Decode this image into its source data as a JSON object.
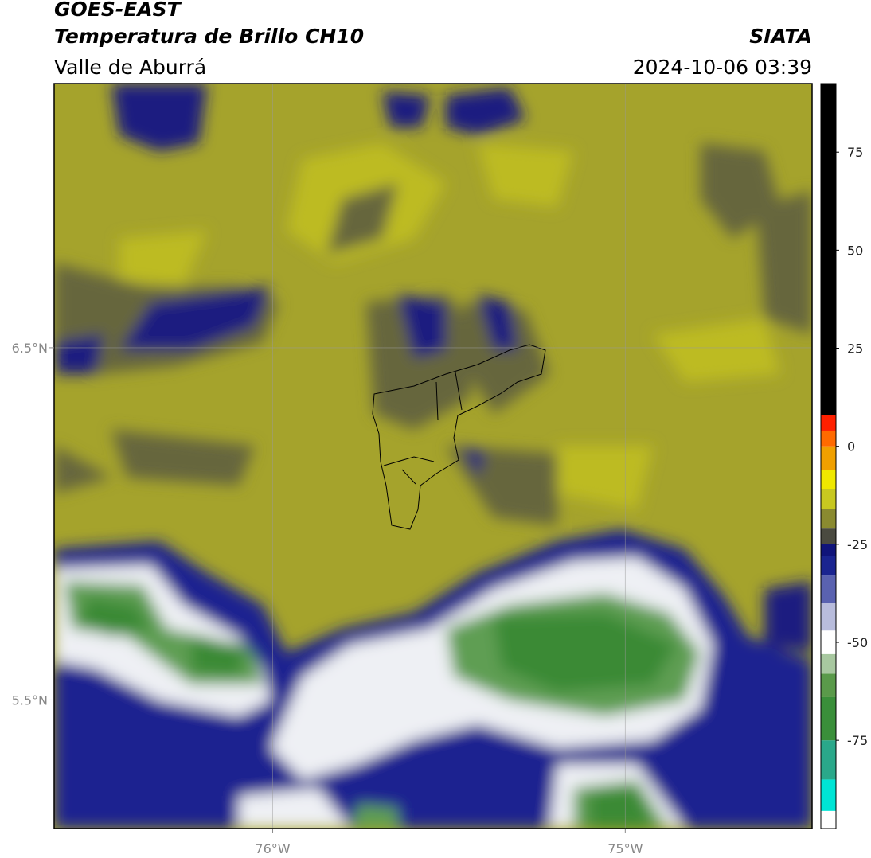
{
  "header": {
    "title": "GOES-EAST",
    "subtitle": "Temperatura de Brillo CH10",
    "region": "Valle de Aburrá",
    "source": "SIATA",
    "datetime": "2024-10-06 03:39"
  },
  "map": {
    "xlim": [
      -76.62,
      -74.47
    ],
    "ylim": [
      5.135,
      7.25
    ],
    "xticks": [
      {
        "value": -76,
        "label": "76°W"
      },
      {
        "value": -75,
        "label": "75°W"
      }
    ],
    "yticks": [
      {
        "value": 6.5,
        "label": "6.5°N"
      },
      {
        "value": 5.5,
        "label": "5.5°N"
      }
    ],
    "grid": true
  },
  "colorbar": {
    "range": [
      -97.5,
      92.5
    ],
    "ticks": [
      75,
      50,
      25,
      0,
      -25,
      -50,
      -75
    ],
    "stops": [
      {
        "value": -97.5,
        "color": "#ffffff"
      },
      {
        "value": -93,
        "color": "#00e5d5"
      },
      {
        "value": -85,
        "color": "#2aa88a"
      },
      {
        "value": -75,
        "color": "#3a8f3a"
      },
      {
        "value": -64,
        "color": "#5a9a4a"
      },
      {
        "value": -58,
        "color": "#a8c8a0"
      },
      {
        "value": -53,
        "color": "#ffffff"
      },
      {
        "value": -47,
        "color": "#b8bcdc"
      },
      {
        "value": -40,
        "color": "#5a62b0"
      },
      {
        "value": -33,
        "color": "#1a2490"
      },
      {
        "value": -28,
        "color": "#10147a"
      },
      {
        "value": -25,
        "color": "#4a4a40"
      },
      {
        "value": -21,
        "color": "#8a8a30"
      },
      {
        "value": -16,
        "color": "#c8c820"
      },
      {
        "value": -11,
        "color": "#f0e800"
      },
      {
        "value": -6,
        "color": "#f0a000"
      },
      {
        "value": 0,
        "color": "#ff6a00"
      },
      {
        "value": 4,
        "color": "#ff2000"
      },
      {
        "value": 8,
        "color": "#000000"
      }
    ]
  }
}
